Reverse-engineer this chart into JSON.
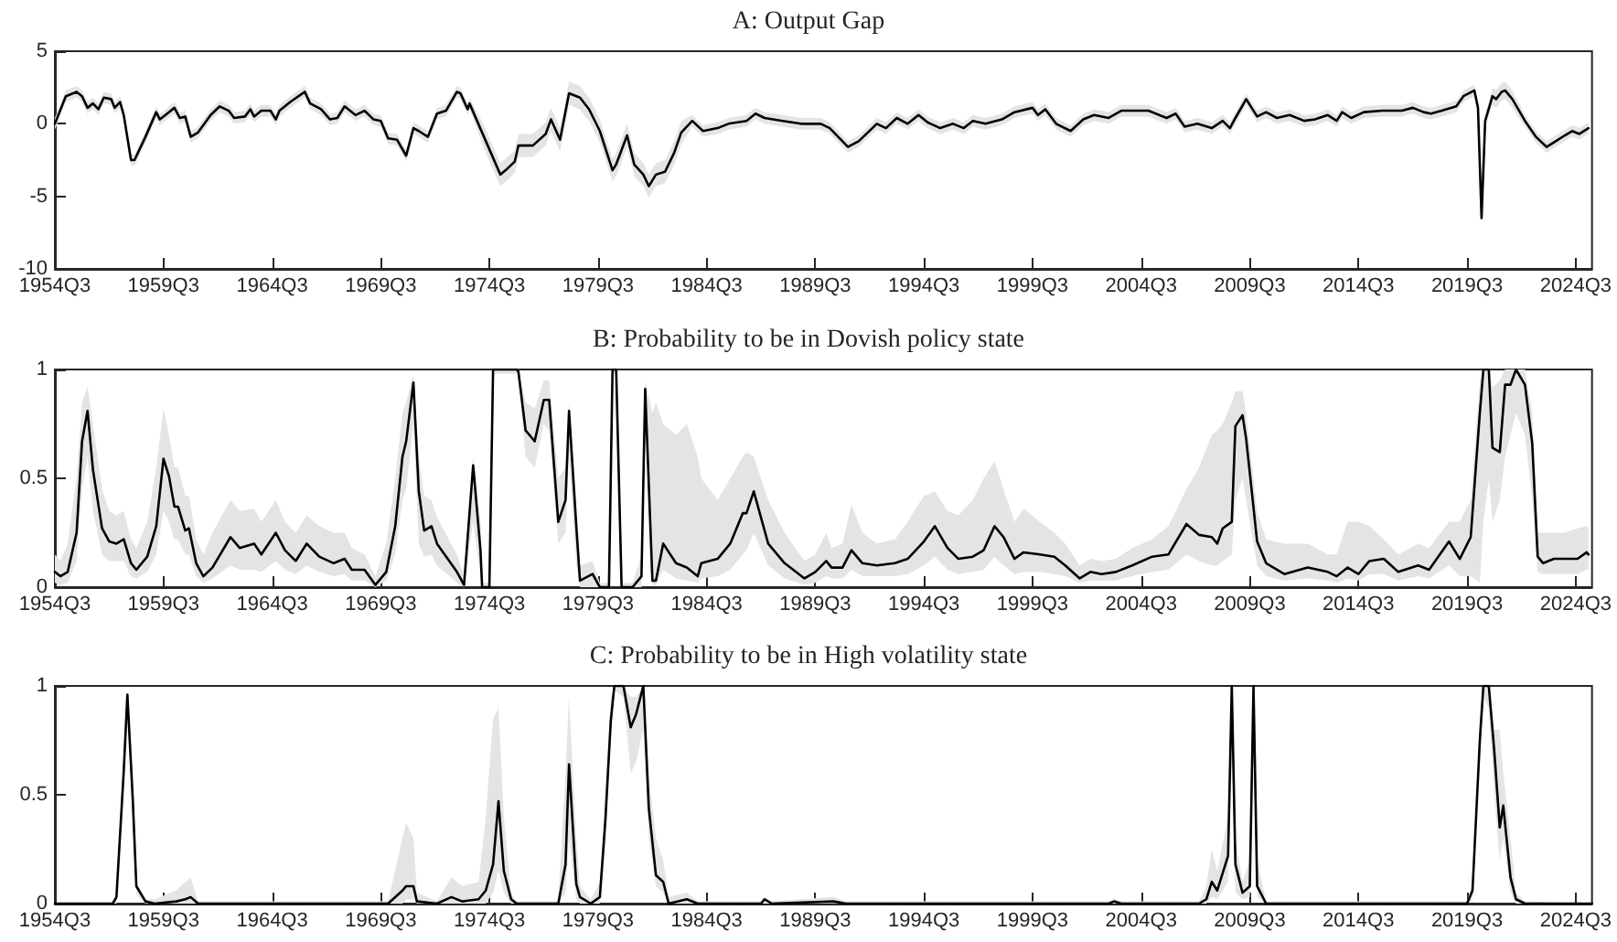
{
  "chart_data": [
    {
      "type": "line",
      "title": "A: Output Gap",
      "x": [
        "1954-07",
        "1955-01",
        "1955-07",
        "1955-10",
        "1956-01",
        "1956-04",
        "1956-07",
        "1956-10",
        "1957-02",
        "1957-04",
        "1957-07",
        "1957-09",
        "1958-01",
        "1958-03",
        "1958-09",
        "1959-03",
        "1959-05",
        "1959-09",
        "1960-01",
        "1960-04",
        "1960-07",
        "1960-10",
        "1961-02",
        "1961-09",
        "1962-02",
        "1962-07",
        "1962-10",
        "1963-04",
        "1963-07",
        "1963-09",
        "1964-01",
        "1964-06",
        "1964-09",
        "1964-11",
        "1965-05",
        "1966-01",
        "1966-04",
        "1966-10",
        "1967-03",
        "1967-07",
        "1967-11",
        "1968-05",
        "1968-10",
        "1969-03",
        "1969-07",
        "1969-11",
        "1970-04",
        "1970-09",
        "1971-01",
        "1971-04",
        "1971-09",
        "1972-02",
        "1972-07",
        "1973-01",
        "1973-03",
        "1973-07",
        "1973-08",
        "1974-04",
        "1975-01",
        "1975-04",
        "1975-09",
        "1975-11",
        "1976-07",
        "1977-02",
        "1977-05",
        "1977-10",
        "1978-03",
        "1978-09",
        "1979-02",
        "1979-08",
        "1980-03",
        "1980-05",
        "1980-11",
        "1981-03",
        "1981-08",
        "1981-11",
        "1982-03",
        "1982-08",
        "1983-01",
        "1983-05",
        "1983-11",
        "1984-05",
        "1985-01",
        "1985-07",
        "1986-05",
        "1986-10",
        "1987-03",
        "1988-01",
        "1988-11",
        "1989-10",
        "1990-03",
        "1991-01",
        "1991-07",
        "1992-05",
        "1992-10",
        "1993-04",
        "1993-10",
        "1994-04",
        "1994-09",
        "1995-04",
        "1995-11",
        "1996-05",
        "1996-10",
        "1997-05",
        "1998-02",
        "1998-09",
        "1999-07",
        "1999-10",
        "2000-02",
        "2000-08",
        "2001-04",
        "2001-11",
        "2002-05",
        "2003-01",
        "2003-08",
        "2004-11",
        "2005-09",
        "2006-02",
        "2006-07",
        "2007-02",
        "2007-10",
        "2008-04",
        "2008-08",
        "2008-11",
        "2009-05",
        "2009-11",
        "2010-04",
        "2010-10",
        "2011-05",
        "2012-01",
        "2012-07",
        "2013-02",
        "2013-07",
        "2013-10",
        "2014-03",
        "2014-10",
        "2015-08",
        "2016-07",
        "2017-01",
        "2017-07",
        "2017-11",
        "2018-05",
        "2019-01",
        "2019-05",
        "2019-11",
        "2020-01",
        "2020-03",
        "2020-05",
        "2020-09",
        "2020-11",
        "2021-02",
        "2021-04",
        "2021-08",
        "2022-03",
        "2022-09",
        "2023-03",
        "2023-08",
        "2024-01",
        "2024-05",
        "2024-09",
        "2025-02"
      ],
      "series": [
        {
          "color": "#000000",
          "values": [
            0,
            1.9,
            2.2,
            1.9,
            1.1,
            1.4,
            1.0,
            1.8,
            1.7,
            1.1,
            1.5,
            0.6,
            -2.5,
            -2.5,
            -0.9,
            0.8,
            0.3,
            0.7,
            1.1,
            0.4,
            0.5,
            -0.9,
            -0.6,
            0.6,
            1.2,
            0.9,
            0.4,
            0.5,
            1.0,
            0.5,
            0.9,
            0.9,
            0.3,
            0.9,
            1.5,
            2.2,
            1.4,
            1.0,
            0.3,
            0.4,
            1.2,
            0.6,
            0.9,
            0.3,
            0.2,
            -1.0,
            -1.1,
            -2.2,
            -0.3,
            -0.5,
            -0.9,
            0.7,
            0.9,
            2.2,
            2.1,
            1.0,
            1.4,
            -0.9,
            -3.5,
            -3.2,
            -2.6,
            -1.5,
            -1.5,
            -0.7,
            0.3,
            -1.1,
            2.1,
            1.8,
            1.0,
            -0.5,
            -3.2,
            -2.8,
            -0.8,
            -2.8,
            -3.5,
            -4.3,
            -3.5,
            -3.3,
            -2.0,
            -0.6,
            0.2,
            -0.5,
            -0.3,
            0,
            0.2,
            0.7,
            0.4,
            0.2,
            0,
            0,
            -0.3,
            -1.6,
            -1.2,
            0,
            -0.3,
            0.4,
            0,
            0.6,
            0.1,
            -0.3,
            0,
            -0.3,
            0.2,
            0,
            0.3,
            0.8,
            1.1,
            0.6,
            1.0,
            0,
            -0.5,
            0.3,
            0.6,
            0.4,
            0.9,
            0.9,
            0.4,
            0.7,
            -0.2,
            0,
            -0.3,
            0.2,
            -0.3,
            0.4,
            1.7,
            0.5,
            0.8,
            0.4,
            0.6,
            0.2,
            0.3,
            0.6,
            0.2,
            0.8,
            0.4,
            0.8,
            0.9,
            0.9,
            1.1,
            0.8,
            0.7,
            0.9,
            1.2,
            1.9,
            2.3,
            1.1,
            -6.5,
            0.2,
            1.9,
            1.7,
            2.2,
            2.3,
            1.7,
            0.2,
            -0.9,
            -1.6,
            -1.2,
            -0.8,
            -0.5,
            -0.7,
            -0.3
          ],
          "lower": [
            -0.4,
            1.5,
            1.8,
            1.5,
            0.7,
            1.0,
            0.6,
            1.4,
            1.3,
            0.7,
            1.1,
            0.2,
            -2.9,
            -2.9,
            -1.3,
            0.4,
            -0.1,
            0.3,
            0.7,
            0,
            0.1,
            -1.3,
            -1.0,
            0.2,
            0.8,
            0.5,
            0,
            0.1,
            0.6,
            0.1,
            0.5,
            0.5,
            -0.1,
            0.5,
            1.1,
            1.8,
            1.0,
            0.6,
            -0.1,
            0,
            0.8,
            0.2,
            0.5,
            -0.1,
            -0.2,
            -1.4,
            -1.5,
            -2.6,
            -0.7,
            -0.9,
            -1.3,
            0.3,
            0.5,
            1.8,
            1.7,
            0.6,
            1.0,
            -1.7,
            -4.3,
            -4.0,
            -3.4,
            -2.3,
            -2.3,
            -1.5,
            -0.5,
            -1.9,
            1.3,
            1.0,
            0.2,
            -1.3,
            -4.0,
            -3.6,
            -1.6,
            -3.6,
            -4.3,
            -5.1,
            -4.3,
            -4.1,
            -2.8,
            -1.4,
            -0.2,
            -0.9,
            -0.7,
            -0.4,
            -0.2,
            0.3,
            0,
            -0.2,
            -0.4,
            -0.4,
            -0.7,
            -2.0,
            -1.6,
            -0.4,
            -0.7,
            0,
            -0.4,
            0.2,
            -0.3,
            -0.7,
            -0.4,
            -0.7,
            -0.2,
            -0.4,
            -0.1,
            0.4,
            0.7,
            0.2,
            0.6,
            -0.4,
            -0.9,
            -0.1,
            0.2,
            0,
            0.5,
            0.5,
            0,
            0.3,
            -0.6,
            -0.4,
            -0.7,
            -0.2,
            -0.7,
            0,
            1.3,
            0.1,
            0.4,
            0,
            0.2,
            -0.2,
            -0.1,
            0.2,
            -0.2,
            0.4,
            0,
            0.4,
            0.5,
            0.5,
            0.7,
            0.4,
            0.3,
            0.5,
            0.8,
            1.5,
            1.9,
            0.7,
            -6.8,
            -0.2,
            1.3,
            1.1,
            1.6,
            1.7,
            1.1,
            -0.2,
            -1.3,
            -2.0,
            -1.6,
            -1.2,
            -0.9,
            -1.1,
            -0.7
          ],
          "upper": [
            0.4,
            2.3,
            2.6,
            2.3,
            1.5,
            1.8,
            1.4,
            2.2,
            2.1,
            1.5,
            1.9,
            1.0,
            -2.1,
            -2.1,
            -0.5,
            1.2,
            0.7,
            1.1,
            1.5,
            0.8,
            0.9,
            -0.5,
            -0.2,
            1.0,
            1.6,
            1.3,
            0.8,
            0.9,
            1.4,
            0.9,
            1.3,
            1.3,
            0.7,
            1.3,
            1.9,
            2.6,
            1.8,
            1.4,
            0.7,
            0.8,
            1.6,
            1.0,
            1.3,
            0.7,
            0.6,
            -0.6,
            -0.7,
            -1.8,
            0.1,
            -0.1,
            -0.5,
            1.1,
            1.3,
            2.6,
            2.5,
            1.4,
            1.8,
            -0.1,
            -2.7,
            -2.4,
            -1.8,
            -0.7,
            -0.7,
            0.1,
            1.1,
            -0.3,
            2.9,
            2.6,
            1.8,
            0.3,
            -2.4,
            -2.0,
            0,
            -2.0,
            -2.7,
            -3.5,
            -2.7,
            -2.5,
            -1.2,
            0.2,
            0.6,
            -0.1,
            0.1,
            0.4,
            0.6,
            1.1,
            0.8,
            0.6,
            0.4,
            0.4,
            0.1,
            -1.2,
            -0.8,
            0.4,
            0.1,
            0.8,
            0.4,
            1.0,
            0.5,
            0.1,
            0.4,
            0.1,
            0.6,
            0.4,
            0.7,
            1.2,
            1.5,
            1.0,
            1.4,
            0.4,
            -0.1,
            0.7,
            1.0,
            0.8,
            1.3,
            1.3,
            0.8,
            1.1,
            0.2,
            0.4,
            0.1,
            0.6,
            0.1,
            0.8,
            2.1,
            0.9,
            1.2,
            0.8,
            1.0,
            0.6,
            0.7,
            1.0,
            0.6,
            1.2,
            0.8,
            1.2,
            1.3,
            1.3,
            1.5,
            1.2,
            1.1,
            1.3,
            1.6,
            2.3,
            2.7,
            1.5,
            -6.2,
            0.6,
            2.5,
            2.3,
            2.8,
            2.9,
            2.3,
            0.6,
            -0.5,
            -1.2,
            -0.8,
            -0.4,
            -0.1,
            -0.3,
            0.1
          ]
        }
      ],
      "xlim": [
        "1954-07",
        "2025-04"
      ],
      "xticks": [
        {
          "value": "1954-07",
          "label": "1954Q3"
        },
        {
          "value": "1959-07",
          "label": "1959Q3"
        },
        {
          "value": "1964-07",
          "label": "1964Q3"
        },
        {
          "value": "1969-07",
          "label": "1969Q3"
        },
        {
          "value": "1974-07",
          "label": "1974Q3"
        },
        {
          "value": "1979-07",
          "label": "1979Q3"
        },
        {
          "value": "1984-07",
          "label": "1984Q3"
        },
        {
          "value": "1989-07",
          "label": "1989Q3"
        },
        {
          "value": "1994-07",
          "label": "1994Q3"
        },
        {
          "value": "1999-07",
          "label": "1999Q3"
        },
        {
          "value": "2004-07",
          "label": "2004Q3"
        },
        {
          "value": "2009-07",
          "label": "2009Q3"
        },
        {
          "value": "2014-07",
          "label": "2014Q3"
        },
        {
          "value": "2019-07",
          "label": "2019Q3"
        },
        {
          "value": "2024-07",
          "label": "2024Q3"
        }
      ],
      "ylim": [
        -10,
        5
      ],
      "yticks": [
        -10,
        -5,
        0,
        5
      ]
    },
    {
      "type": "line",
      "title": "B: Probability to be in Dovish policy state",
      "x": [
        "1954-07",
        "1954-10",
        "1955-02",
        "1955-07",
        "1955-10",
        "1956-01",
        "1956-04",
        "1956-09",
        "1957-01",
        "1957-05",
        "1957-09",
        "1958-01",
        "1958-04",
        "1958-10",
        "1959-03",
        "1959-07",
        "1959-10",
        "1960-01",
        "1960-03",
        "1960-07",
        "1960-09",
        "1961-01",
        "1961-05",
        "1961-10",
        "1962-08",
        "1963-01",
        "1963-09",
        "1964-01",
        "1964-09",
        "1965-02",
        "1965-08",
        "1966-02",
        "1966-09",
        "1967-05",
        "1967-11",
        "1968-03",
        "1968-10",
        "1969-04",
        "1969-10",
        "1970-03",
        "1970-07",
        "1970-09",
        "1971-01",
        "1971-04",
        "1971-07",
        "1971-11",
        "1972-02",
        "1973-01",
        "1973-05",
        "1973-10",
        "1974-02",
        "1974-03",
        "1974-07",
        "1974-09",
        "1975-10",
        "1975-11",
        "1976-03",
        "1976-08",
        "1977-01",
        "1977-04",
        "1977-09",
        "1978-01",
        "1978-03",
        "1978-07",
        "1978-09",
        "1979-04",
        "1979-08",
        "1980-01",
        "1980-03",
        "1980-05",
        "1980-08",
        "1981-02",
        "1981-07",
        "1981-09",
        "1982-01",
        "1982-03",
        "1982-07",
        "1983-02",
        "1983-08",
        "1984-02",
        "1984-04",
        "1985-01",
        "1985-08",
        "1986-03",
        "1986-05",
        "1986-09",
        "1987-05",
        "1988-02",
        "1989-01",
        "1989-07",
        "1990-01",
        "1990-04",
        "1990-10",
        "1991-03",
        "1991-09",
        "1992-05",
        "1993-03",
        "1993-10",
        "1994-07",
        "1995-01",
        "1995-08",
        "1996-02",
        "1996-10",
        "1997-04",
        "1997-10",
        "1998-03",
        "1998-09",
        "1999-02",
        "1999-11",
        "2000-07",
        "2001-01",
        "2001-09",
        "2002-03",
        "2002-09",
        "2003-05",
        "2004-02",
        "2005-01",
        "2005-10",
        "2006-08",
        "2007-03",
        "2007-10",
        "2008-01",
        "2008-04",
        "2008-09",
        "2008-11",
        "2009-03",
        "2009-05",
        "2009-11",
        "2010-04",
        "2011-02",
        "2012-03",
        "2013-02",
        "2013-07",
        "2014-01",
        "2014-07",
        "2015-01",
        "2015-09",
        "2016-05",
        "2017-04",
        "2017-10",
        "2018-09",
        "2019-03",
        "2019-09",
        "2020-02",
        "2020-04",
        "2020-07",
        "2020-09",
        "2021-01",
        "2021-04",
        "2021-07",
        "2021-10",
        "2022-03",
        "2022-07",
        "2022-10",
        "2023-01",
        "2023-07",
        "2024-01",
        "2024-08",
        "2025-01",
        "2025-02"
      ],
      "series": [
        {
          "color": "#000000",
          "values": [
            0.07,
            0.05,
            0.07,
            0.25,
            0.67,
            0.81,
            0.54,
            0.27,
            0.21,
            0.2,
            0.22,
            0.11,
            0.08,
            0.14,
            0.28,
            0.59,
            0.51,
            0.37,
            0.37,
            0.26,
            0.27,
            0.11,
            0.05,
            0.09,
            0.23,
            0.18,
            0.2,
            0.15,
            0.25,
            0.17,
            0.12,
            0.2,
            0.14,
            0.11,
            0.13,
            0.08,
            0.08,
            0.01,
            0.07,
            0.28,
            0.6,
            0.67,
            0.94,
            0.44,
            0.26,
            0.28,
            0.2,
            0.07,
            0.01,
            0.56,
            0.17,
            0,
            0,
            1,
            1,
            0.99,
            0.72,
            0.67,
            0.86,
            0.86,
            0.3,
            0.4,
            0.81,
            0.28,
            0.03,
            0.06,
            0,
            0,
            1,
            1,
            0,
            0,
            0.05,
            0.91,
            0.03,
            0.03,
            0.2,
            0.11,
            0.09,
            0.05,
            0.11,
            0.13,
            0.2,
            0.34,
            0.34,
            0.44,
            0.2,
            0.11,
            0.04,
            0.07,
            0.12,
            0.09,
            0.09,
            0.17,
            0.11,
            0.1,
            0.11,
            0.13,
            0.21,
            0.28,
            0.18,
            0.13,
            0.14,
            0.17,
            0.28,
            0.23,
            0.13,
            0.16,
            0.15,
            0.14,
            0.1,
            0.04,
            0.07,
            0.06,
            0.07,
            0.1,
            0.14,
            0.15,
            0.29,
            0.24,
            0.23,
            0.2,
            0.27,
            0.3,
            0.74,
            0.79,
            0.68,
            0.21,
            0.11,
            0.06,
            0.09,
            0.07,
            0.05,
            0.09,
            0.06,
            0.12,
            0.13,
            0.07,
            0.1,
            0.08,
            0.21,
            0.13,
            0.23,
            0.8,
            1,
            1,
            0.64,
            0.62,
            0.93,
            0.93,
            1,
            0.93,
            0.66,
            0.14,
            0.11,
            0.13,
            0.13,
            0.13,
            0.16,
            0.15
          ],
          "lower": [
            0.02,
            0.01,
            0.02,
            0.12,
            0.45,
            0.6,
            0.35,
            0.15,
            0.12,
            0.12,
            0.12,
            0.05,
            0.04,
            0.07,
            0.15,
            0.35,
            0.3,
            0.22,
            0.22,
            0.15,
            0.15,
            0.05,
            0.02,
            0.04,
            0.1,
            0.08,
            0.08,
            0.07,
            0.12,
            0.08,
            0.06,
            0.1,
            0.07,
            0.05,
            0.06,
            0.03,
            0.03,
            0,
            0.03,
            0.15,
            0.4,
            0.45,
            0.75,
            0.2,
            0.14,
            0.15,
            0.1,
            0.02,
            0,
            0.3,
            0.05,
            0,
            0,
            0.98,
            0.98,
            0.95,
            0.6,
            0.55,
            0.75,
            0.72,
            0.2,
            0.25,
            0.6,
            0.1,
            0,
            0,
            0,
            0,
            0.98,
            0.98,
            0,
            0,
            0,
            0.8,
            0.01,
            0.01,
            0.08,
            0.04,
            0.03,
            0.02,
            0.04,
            0.05,
            0.08,
            0.15,
            0.17,
            0.25,
            0.1,
            0.04,
            0.01,
            0.02,
            0.05,
            0.04,
            0.04,
            0.08,
            0.05,
            0.05,
            0.05,
            0.06,
            0.1,
            0.14,
            0.08,
            0.06,
            0.07,
            0.08,
            0.14,
            0.1,
            0.06,
            0.07,
            0.07,
            0.06,
            0.05,
            0.02,
            0.03,
            0.03,
            0.03,
            0.05,
            0.07,
            0.08,
            0.15,
            0.12,
            0.1,
            0.1,
            0.12,
            0.15,
            0.4,
            0.5,
            0.4,
            0.1,
            0.05,
            0.03,
            0.04,
            0.03,
            0.02,
            0.04,
            0.03,
            0.06,
            0.06,
            0.03,
            0.05,
            0.04,
            0.1,
            0.05,
            0.05,
            0.02,
            0.3,
            0.5,
            0.3,
            0.4,
            0.6,
            0.7,
            0.8,
            0.7,
            0.4,
            0.07,
            0.06,
            0.06,
            0.06,
            0.06,
            0.08,
            0.08
          ],
          "upper": [
            0.15,
            0.12,
            0.2,
            0.5,
            0.85,
            0.92,
            0.75,
            0.45,
            0.35,
            0.33,
            0.35,
            0.22,
            0.18,
            0.3,
            0.55,
            0.82,
            0.7,
            0.55,
            0.55,
            0.42,
            0.42,
            0.22,
            0.15,
            0.25,
            0.4,
            0.35,
            0.36,
            0.3,
            0.4,
            0.3,
            0.25,
            0.33,
            0.28,
            0.25,
            0.25,
            0.18,
            0.15,
            0.05,
            0.2,
            0.5,
            0.8,
            0.85,
            0.98,
            0.6,
            0.42,
            0.4,
            0.32,
            0.15,
            0.05,
            0.6,
            0.3,
            0.02,
            0.02,
            1,
            1,
            1,
            0.85,
            0.82,
            0.95,
            0.95,
            0.5,
            0.55,
            0.85,
            0.4,
            0.1,
            0.12,
            0.02,
            0.02,
            1,
            1,
            0.02,
            0.02,
            0.15,
            0.95,
            0.8,
            0.85,
            0.75,
            0.7,
            0.75,
            0.6,
            0.5,
            0.4,
            0.5,
            0.6,
            0.62,
            0.6,
            0.4,
            0.25,
            0.12,
            0.15,
            0.25,
            0.18,
            0.2,
            0.38,
            0.25,
            0.2,
            0.22,
            0.3,
            0.42,
            0.44,
            0.35,
            0.33,
            0.4,
            0.5,
            0.58,
            0.45,
            0.3,
            0.36,
            0.3,
            0.25,
            0.2,
            0.1,
            0.13,
            0.12,
            0.13,
            0.18,
            0.22,
            0.28,
            0.45,
            0.55,
            0.7,
            0.72,
            0.75,
            0.85,
            0.9,
            0.9,
            0.8,
            0.35,
            0.22,
            0.2,
            0.2,
            0.15,
            0.15,
            0.3,
            0.3,
            0.28,
            0.22,
            0.15,
            0.2,
            0.18,
            0.3,
            0.3,
            0.4,
            0.95,
            1,
            1,
            0.92,
            0.95,
            1,
            1,
            1,
            1,
            0.8,
            0.25,
            0.25,
            0.25,
            0.25,
            0.27,
            0.28,
            0.27
          ]
        }
      ],
      "xlim": [
        "1954-07",
        "2025-04"
      ],
      "xticks": [
        {
          "value": "1954-07",
          "label": "1954Q3"
        },
        {
          "value": "1959-07",
          "label": "1959Q3"
        },
        {
          "value": "1964-07",
          "label": "1964Q3"
        },
        {
          "value": "1969-07",
          "label": "1969Q3"
        },
        {
          "value": "1974-07",
          "label": "1974Q3"
        },
        {
          "value": "1979-07",
          "label": "1979Q3"
        },
        {
          "value": "1984-07",
          "label": "1984Q3"
        },
        {
          "value": "1989-07",
          "label": "1989Q3"
        },
        {
          "value": "1994-07",
          "label": "1994Q3"
        },
        {
          "value": "1999-07",
          "label": "1999Q3"
        },
        {
          "value": "2004-07",
          "label": "2004Q3"
        },
        {
          "value": "2009-07",
          "label": "2009Q3"
        },
        {
          "value": "2014-07",
          "label": "2014Q3"
        },
        {
          "value": "2019-07",
          "label": "2019Q3"
        },
        {
          "value": "2024-07",
          "label": "2024Q3"
        }
      ],
      "ylim": [
        0,
        1
      ],
      "yticks": [
        0,
        0.5,
        1
      ]
    },
    {
      "type": "line",
      "title": "C: Probability to be in High volatility state",
      "x": [
        "1954-07",
        "1957-03",
        "1957-05",
        "1957-09",
        "1957-11",
        "1958-02",
        "1958-04",
        "1958-09",
        "1959-02",
        "1960-02",
        "1960-07",
        "1960-10",
        "1961-02",
        "1969-11",
        "1970-07",
        "1970-09",
        "1971-01",
        "1971-03",
        "1972-02",
        "1972-10",
        "1973-04",
        "1974-01",
        "1974-05",
        "1974-09",
        "1974-12",
        "1975-03",
        "1975-07",
        "1975-10",
        "1977-09",
        "1978-01",
        "1978-03",
        "1978-07",
        "1978-09",
        "1979-03",
        "1979-08",
        "1979-11",
        "1980-02",
        "1980-04",
        "1980-09",
        "1981-01",
        "1981-04",
        "1981-08",
        "1981-11",
        "1982-03",
        "1982-07",
        "1982-10",
        "1983-08",
        "1984-02",
        "1987-01",
        "1987-03",
        "1987-07",
        "1990-05",
        "1990-12",
        "2003-01",
        "2003-04",
        "2003-08",
        "2007-03",
        "2007-07",
        "2007-10",
        "2008-01",
        "2008-07",
        "2008-09",
        "2008-11",
        "2009-03",
        "2009-07",
        "2009-09",
        "2009-11",
        "2010-04",
        "2019-07",
        "2019-10",
        "2020-02",
        "2020-04",
        "2020-07",
        "2020-10",
        "2021-01",
        "2021-03",
        "2021-07",
        "2021-10",
        "2022-03",
        "2025-04"
      ],
      "series": [
        {
          "color": "#000000",
          "values": [
            0,
            0,
            0.03,
            0.61,
            0.96,
            0.47,
            0.08,
            0.01,
            0,
            0.01,
            0.02,
            0.03,
            0,
            0,
            0.06,
            0.08,
            0.08,
            0.01,
            0,
            0.03,
            0.01,
            0.02,
            0.06,
            0.18,
            0.47,
            0.15,
            0.02,
            0,
            0,
            0.18,
            0.64,
            0.09,
            0.03,
            0,
            0.03,
            0.38,
            0.84,
            1,
            1,
            0.81,
            0.87,
            1,
            0.44,
            0.13,
            0.1,
            0,
            0.02,
            0,
            0,
            0.02,
            0,
            0.01,
            0,
            0,
            0.01,
            0,
            0,
            0.02,
            0.1,
            0.06,
            0.22,
            1,
            0.18,
            0.05,
            0.08,
            1,
            0.08,
            0,
            0,
            0.06,
            0.75,
            1,
            1,
            0.7,
            0.35,
            0.45,
            0.12,
            0.02,
            0,
            0
          ],
          "lower": [
            0,
            0,
            0,
            0.5,
            0.9,
            0.35,
            0.04,
            0,
            0,
            0,
            0,
            0,
            0,
            0,
            0,
            0.02,
            0.02,
            0,
            0,
            0,
            0,
            0,
            0,
            0.05,
            0.15,
            0.05,
            0,
            0,
            0,
            0.05,
            0.3,
            0.02,
            0,
            0,
            0,
            0.25,
            0.75,
            0.98,
            0.95,
            0.6,
            0.65,
            0.8,
            0.3,
            0.08,
            0.05,
            0,
            0,
            0,
            0,
            0,
            0,
            0,
            0,
            0,
            0,
            0,
            0,
            0,
            0.03,
            0.02,
            0.1,
            0.7,
            0.05,
            0.02,
            0.03,
            0.7,
            0.03,
            0,
            0,
            0.02,
            0.65,
            0.95,
            0.9,
            0.5,
            0.2,
            0.3,
            0.05,
            0,
            0,
            0
          ],
          "upper": [
            0,
            0,
            0.05,
            0.7,
            0.98,
            0.6,
            0.1,
            0.02,
            0.02,
            0.06,
            0.1,
            0.12,
            0.01,
            0.01,
            0.3,
            0.37,
            0.3,
            0.05,
            0.01,
            0.12,
            0.08,
            0.1,
            0.4,
            0.85,
            0.9,
            0.4,
            0.05,
            0.01,
            0.01,
            0.6,
            0.95,
            0.3,
            0.08,
            0.02,
            0.1,
            0.5,
            0.95,
            1,
            1,
            0.95,
            0.95,
            1,
            0.6,
            0.3,
            0.2,
            0.03,
            0.05,
            0.01,
            0.01,
            0.03,
            0.01,
            0.03,
            0.01,
            0.01,
            0.02,
            0.01,
            0.01,
            0.08,
            0.25,
            0.15,
            0.4,
            1,
            0.3,
            0.1,
            0.2,
            1,
            0.2,
            0.01,
            0.01,
            0.1,
            0.85,
            1,
            1,
            0.8,
            0.8,
            0.6,
            0.3,
            0.05,
            0.01,
            0
          ]
        }
      ],
      "xlim": [
        "1954-07",
        "2025-04"
      ],
      "xticks": [
        {
          "value": "1954-07",
          "label": "1954Q3"
        },
        {
          "value": "1959-07",
          "label": "1959Q3"
        },
        {
          "value": "1964-07",
          "label": "1964Q3"
        },
        {
          "value": "1969-07",
          "label": "1969Q3"
        },
        {
          "value": "1974-07",
          "label": "1974Q3"
        },
        {
          "value": "1979-07",
          "label": "1979Q3"
        },
        {
          "value": "1984-07",
          "label": "1984Q3"
        },
        {
          "value": "1989-07",
          "label": "1989Q3"
        },
        {
          "value": "1994-07",
          "label": "1994Q3"
        },
        {
          "value": "1999-07",
          "label": "1999Q3"
        },
        {
          "value": "2004-07",
          "label": "2004Q3"
        },
        {
          "value": "2009-07",
          "label": "2009Q3"
        },
        {
          "value": "2014-07",
          "label": "2014Q3"
        },
        {
          "value": "2019-07",
          "label": "2019Q3"
        },
        {
          "value": "2024-07",
          "label": "2024Q3"
        }
      ],
      "ylim": [
        0,
        1
      ],
      "yticks": [
        0,
        0.5,
        1
      ]
    }
  ]
}
